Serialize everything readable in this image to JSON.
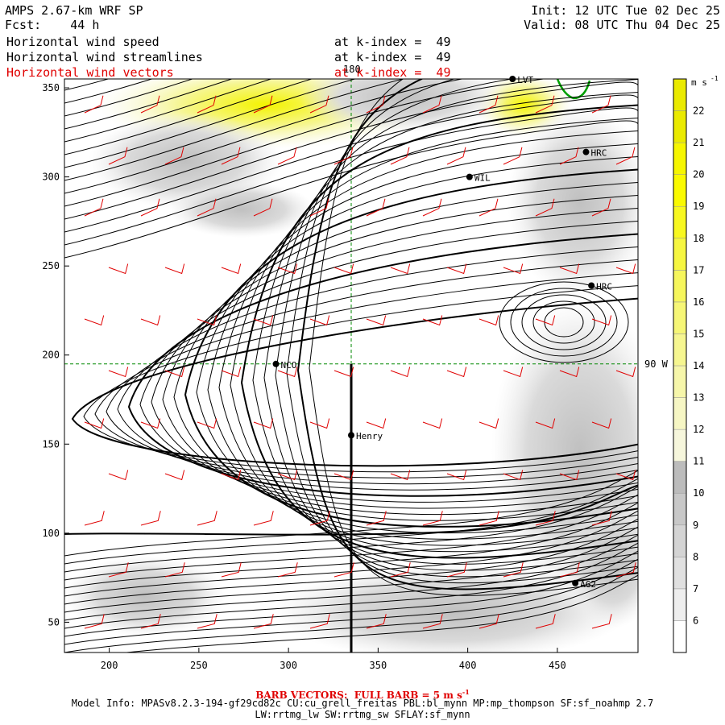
{
  "header": {
    "model": "AMPS 2.67-km WRF SP",
    "init": "Init: 12 UTC Tue 02 Dec 25",
    "fcst_label": "Fcst:",
    "fcst_value": "44 h",
    "valid": "Valid: 08 UTC Thu 04 Dec 25",
    "fields": [
      {
        "name": "Horizontal wind speed",
        "level": "at k-index =  49",
        "color": "#000000"
      },
      {
        "name": "Horizontal wind streamlines",
        "level": "at k-index =  49",
        "color": "#000000"
      },
      {
        "name": "Horizontal wind vectors",
        "level": "at k-index =  49",
        "color": "#e00000"
      }
    ]
  },
  "chart_data": {
    "type": "map",
    "xlim": [
      175,
      495
    ],
    "ylim": [
      33,
      355
    ],
    "xticks": [
      200,
      250,
      300,
      350,
      400,
      450
    ],
    "yticks": [
      50,
      100,
      150,
      200,
      250,
      300,
      350
    ],
    "grid": {
      "meridian_x": 335,
      "parallel_y": 195,
      "meridian_label": "180",
      "parallel_label": "90 W",
      "color": "#008800"
    },
    "colorbar": {
      "unit": "m s",
      "unit_exp": "-1",
      "levels": [
        6,
        7,
        8,
        9,
        10,
        11,
        12,
        13,
        14,
        15,
        16,
        17,
        18,
        19,
        20,
        21,
        22
      ],
      "colors": [
        "#ffffff",
        "#eeeeee",
        "#e0e0e0",
        "#d4d4d4",
        "#c8c8c8",
        "#bcbcbc",
        "#f6f6dc",
        "#f6f6c4",
        "#f6f6aa",
        "#f6f690",
        "#f6f676",
        "#f6f65c",
        "#f6f640",
        "#f8f820",
        "#fafa00",
        "#f6f600",
        "#eaea00"
      ]
    },
    "stations": [
      {
        "name": "WIL",
        "x": 401,
        "y": 300
      },
      {
        "name": "HRC",
        "x": 466,
        "y": 314
      },
      {
        "name": "HRC",
        "x": 469,
        "y": 239
      },
      {
        "name": "NCO",
        "x": 293,
        "y": 195
      },
      {
        "name": "Henry",
        "x": 335,
        "y": 155
      },
      {
        "name": "AG2",
        "x": 460,
        "y": 72
      },
      {
        "name": "LVT",
        "x": 425,
        "y": 355
      }
    ],
    "barb_scale_label": "BARB VECTORS:  FULL BARB = 5 m s",
    "barb_scale_exp": "-1"
  },
  "footer": {
    "model_info": "Model Info: MPASv8.2.3-194-gf29cd82c CU:cu_grell_freitas PBL:bl_mynn MP:mp_thompson SF:sf_noahmp 2.7",
    "model_info2": "LW:rrtmg_lw SW:rrtmg_sw SFLAY:sf_mynn"
  }
}
